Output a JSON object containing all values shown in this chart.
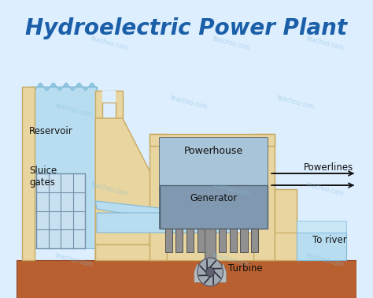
{
  "title": "Hydroelectric Power Plant",
  "title_color": "#1a5fa8",
  "title_fontsize": 20,
  "bg_color": "#ddeeff",
  "dam_color": "#e8d5a0",
  "dam_outline": "#c8a860",
  "water_color": "#b8ddf0",
  "water_outline": "#80b8d8",
  "ground_color": "#b86030",
  "powerhouse_bg": "#90aec8",
  "powerhouse_outline": "#506070",
  "generator_color": "#8098b0",
  "shaft_color": "#909090",
  "sluice_color": "#c8e0f0",
  "sluice_outline": "#7090a8",
  "river_color": "#b8ddf0",
  "arrow_color": "#111111",
  "label_color": "#111111",
  "labels": {
    "reservoir": "Reservoir",
    "sluice": "Sluice\ngates",
    "powerhouse": "Powerhouse",
    "generator": "Generator",
    "turbine": "Turbine",
    "powerlines": "Powerlines",
    "to_river": "To river"
  },
  "watermark": "teachoo.com"
}
